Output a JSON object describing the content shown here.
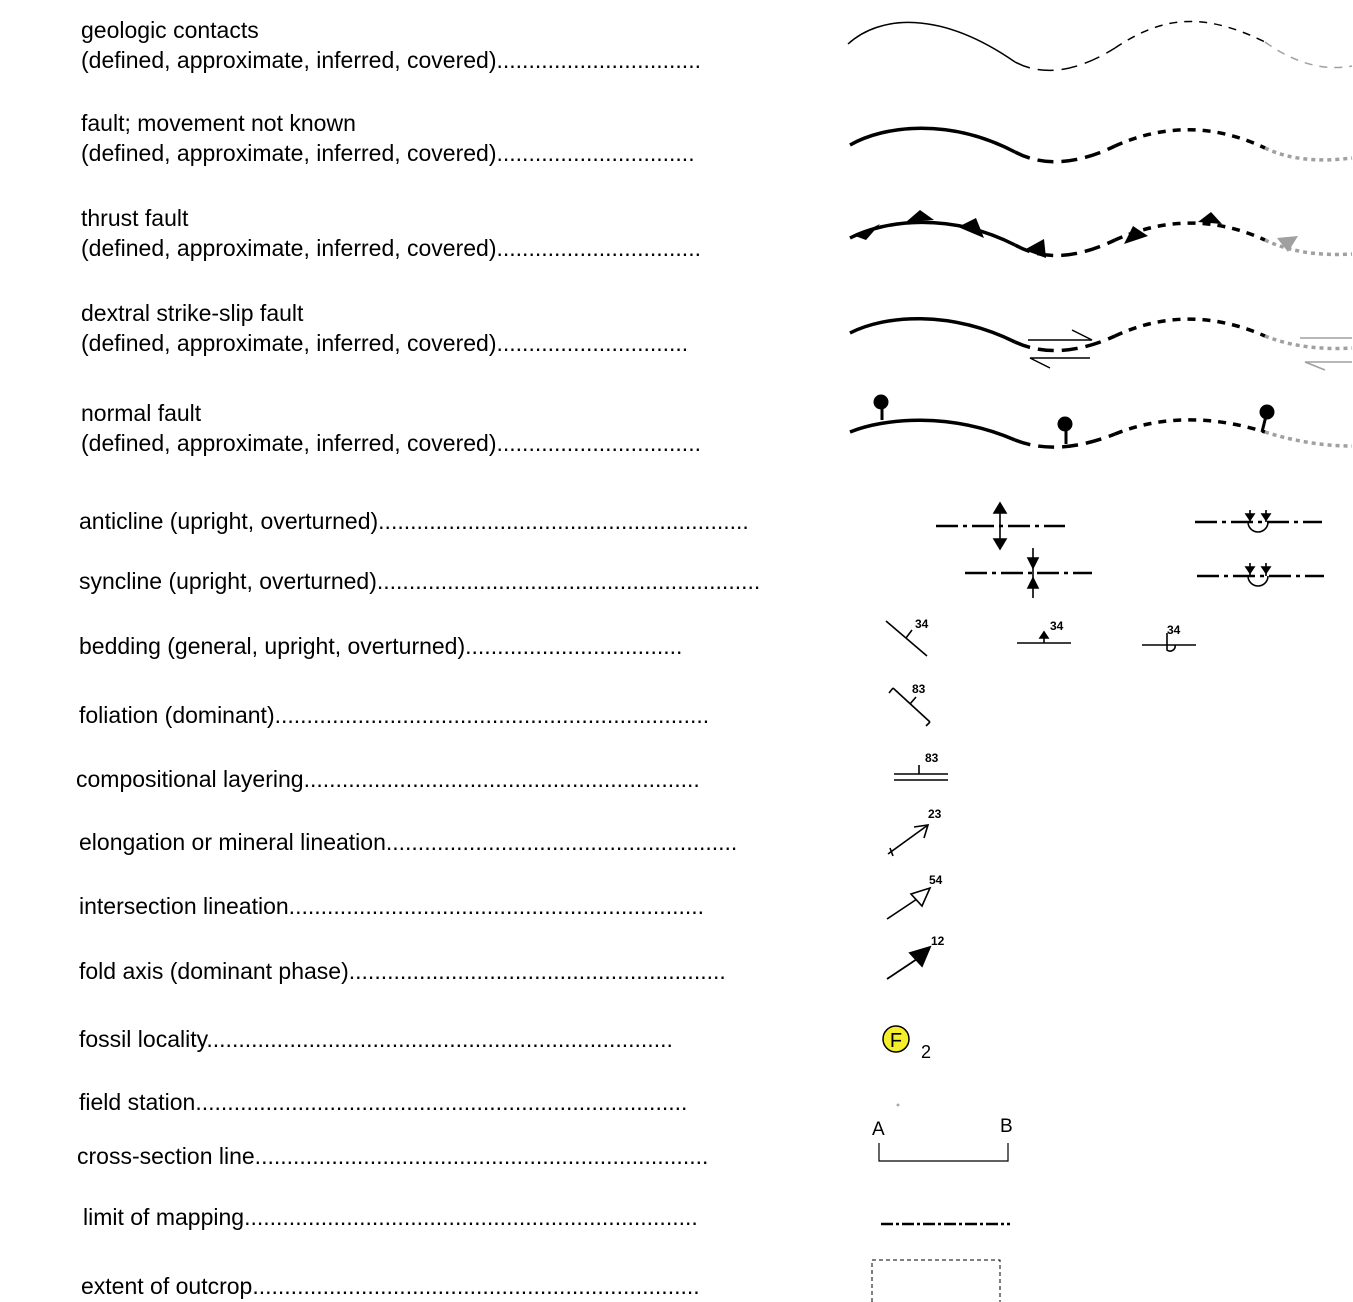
{
  "legend": {
    "geologic_contacts": {
      "line1": "geologic contacts",
      "line2": "(defined, approximate, inferred, covered)................................"
    },
    "fault_unknown": {
      "line1": "fault; movement not known",
      "line2": "(defined, approximate, inferred, covered)..............................."
    },
    "thrust_fault": {
      "line1": "thrust fault",
      "line2": "(defined, approximate, inferred, covered)................................"
    },
    "dextral_fault": {
      "line1": "dextral strike-slip fault",
      "line2": "(defined, approximate, inferred, covered).............................."
    },
    "normal_fault": {
      "line1": "normal fault",
      "line2": "(defined, approximate, inferred, covered)................................"
    },
    "anticline": "anticline (upright, overturned)..........................................................",
    "syncline": "syncline (upright, overturned)............................................................",
    "bedding": "bedding (general, upright, overturned)..................................",
    "foliation": "foliation (dominant)....................................................................",
    "compositional_layering": "compositional layering..............................................................",
    "elongation_lineation": "elongation or mineral lineation.......................................................",
    "intersection_lineation": "intersection lineation.................................................................",
    "fold_axis": "fold axis (dominant phase)...........................................................",
    "fossil_locality": "fossil locality.........................................................................",
    "field_station": "field station.............................................................................",
    "cross_section": "cross-section line.......................................................................",
    "limit_of_mapping": "limit of mapping.......................................................................",
    "extent_of_outcrop": "extent of outcrop......................................................................"
  },
  "symbols": {
    "bedding_dips": [
      "34",
      "34",
      "34"
    ],
    "foliation_dip": "83",
    "layering_dip": "83",
    "elongation_plunge": "23",
    "intersection_plunge": "54",
    "fold_axis_plunge": "12",
    "fossil_letter": "F",
    "fossil_count": "2",
    "section_start": "A",
    "section_end": "B"
  },
  "colors": {
    "line": "#000000",
    "covered": "#a0a0a0",
    "fossil_fill": "#f5ee2a"
  },
  "icons": [
    "thrust-teeth-icon",
    "normal-fault-ball-icon",
    "strike-slip-arrows-icon",
    "anticline-arrows-icon",
    "syncline-arrows-icon",
    "strike-dip-icon",
    "lineation-arrow-icon",
    "fossil-icon"
  ]
}
